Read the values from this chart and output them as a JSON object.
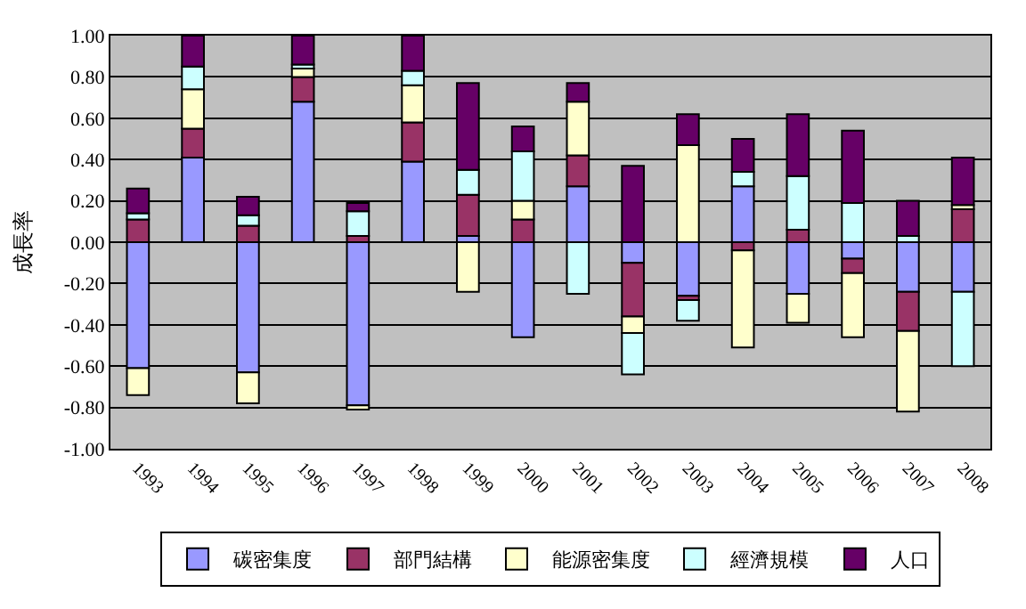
{
  "chart_data": {
    "type": "bar",
    "stacked": true,
    "ylabel": "成長率",
    "categories": [
      "1993",
      "1994",
      "1995",
      "1996",
      "1997",
      "1998",
      "1999",
      "2000",
      "2001",
      "2002",
      "2003",
      "2004",
      "2005",
      "2006",
      "2007",
      "2008"
    ],
    "series": [
      {
        "name": "碳密集度",
        "color": "#9999ff",
        "values": [
          -0.61,
          0.41,
          -0.63,
          0.68,
          -0.79,
          0.39,
          0.03,
          -0.46,
          0.27,
          -0.1,
          -0.26,
          0.27,
          -0.25,
          -0.08,
          -0.24,
          -0.24
        ]
      },
      {
        "name": "部門結構",
        "color": "#993366",
        "values": [
          0.11,
          0.14,
          0.08,
          0.12,
          0.03,
          0.19,
          0.2,
          0.11,
          0.15,
          -0.26,
          -0.02,
          -0.04,
          0.06,
          -0.07,
          -0.19,
          0.16
        ]
      },
      {
        "name": "能源密集度",
        "color": "#ffffcc",
        "values": [
          -0.13,
          0.19,
          -0.15,
          0.04,
          -0.02,
          0.18,
          -0.24,
          0.09,
          0.26,
          -0.08,
          0.47,
          -0.47,
          -0.14,
          -0.31,
          -0.39,
          0.02
        ]
      },
      {
        "name": "經濟規模",
        "color": "#ccffff",
        "values": [
          0.03,
          0.11,
          0.05,
          0.02,
          0.12,
          0.07,
          0.12,
          0.24,
          -0.25,
          -0.2,
          -0.1,
          0.07,
          0.26,
          0.19,
          0.03,
          -0.36
        ]
      },
      {
        "name": "人口",
        "color": "#660066",
        "values": [
          0.12,
          0.15,
          0.09,
          0.14,
          0.04,
          0.17,
          0.42,
          0.12,
          0.09,
          0.37,
          0.15,
          0.16,
          0.3,
          0.35,
          0.17,
          0.23
        ]
      }
    ],
    "ylim": [
      -1.0,
      1.0
    ],
    "yticks": [
      {
        "value": -1.0,
        "label": "-1.00"
      },
      {
        "value": -0.8,
        "label": "-0.80"
      },
      {
        "value": -0.6,
        "label": "-0.60"
      },
      {
        "value": -0.4,
        "label": "-0.40"
      },
      {
        "value": -0.2,
        "label": "-0.20"
      },
      {
        "value": 0,
        "label": "0.00"
      },
      {
        "value": 0.2,
        "label": "0.20"
      },
      {
        "value": 0.4,
        "label": "0.40"
      },
      {
        "value": 0.6,
        "label": "0.60"
      },
      {
        "value": 0.8,
        "label": "0.80"
      },
      {
        "value": 1.0,
        "label": "1.00"
      }
    ],
    "grid": "y",
    "legend": "bottom"
  }
}
